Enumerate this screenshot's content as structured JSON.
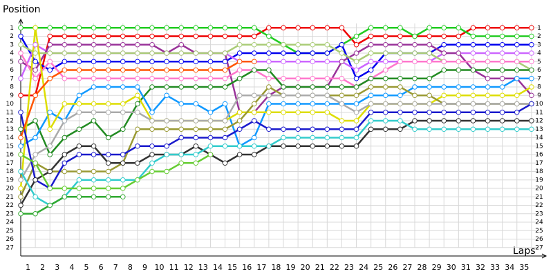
{
  "chart_data": {
    "type": "lap-chart",
    "y_label": "Position",
    "x_label": "Laps",
    "x": [
      0,
      1,
      2,
      3,
      4,
      5,
      6,
      7,
      8,
      9,
      10,
      11,
      12,
      13,
      14,
      15,
      16,
      17,
      18,
      19,
      20,
      21,
      22,
      23,
      24,
      25,
      26,
      27,
      28,
      29,
      30,
      31,
      32,
      33,
      34,
      35
    ],
    "xlim": [
      0,
      36
    ],
    "ylim": [
      28,
      0
    ],
    "xticks": [
      1,
      2,
      3,
      4,
      5,
      6,
      7,
      8,
      9,
      10,
      11,
      12,
      13,
      14,
      15,
      16,
      17,
      18,
      19,
      20,
      21,
      22,
      23,
      24,
      25,
      26,
      27,
      28,
      29,
      30,
      31,
      32,
      33,
      34,
      35
    ],
    "yticks": [
      1,
      2,
      3,
      4,
      5,
      6,
      7,
      8,
      9,
      10,
      11,
      12,
      13,
      14,
      15,
      16,
      17,
      18,
      19,
      20,
      21,
      22,
      23,
      24,
      25,
      26,
      27
    ],
    "grid": true,
    "series": [
      {
        "color": "#ee0000",
        "values": [
          9,
          9,
          2,
          2,
          2,
          2,
          2,
          2,
          2,
          2,
          2,
          2,
          2,
          2,
          2,
          2,
          2,
          1,
          1,
          1,
          1,
          1,
          1,
          3,
          2,
          2,
          2,
          2,
          2,
          2,
          2,
          1,
          1,
          1,
          1,
          1
        ]
      },
      {
        "color": "#22cc22",
        "values": [
          1,
          1,
          1,
          1,
          1,
          1,
          1,
          1,
          1,
          1,
          1,
          1,
          1,
          1,
          1,
          1,
          1,
          2,
          3,
          4,
          4,
          4,
          3,
          2,
          1,
          1,
          1,
          2,
          1,
          1,
          1,
          2,
          2,
          2,
          2,
          2
        ]
      },
      {
        "color": "#0000ee",
        "values": [
          2,
          5,
          6,
          5,
          5,
          5,
          5,
          5,
          5,
          5,
          5,
          5,
          5,
          5,
          5,
          4,
          4,
          4,
          4,
          4,
          4,
          4,
          3,
          7,
          6,
          4,
          4,
          4,
          4,
          3,
          3,
          3,
          3,
          3,
          3,
          3
        ]
      },
      {
        "color": "#cc66ff",
        "values": [
          7,
          3,
          4,
          4,
          4,
          4,
          4,
          4,
          4,
          4,
          4,
          4,
          4,
          4,
          4,
          5,
          5,
          5,
          5,
          5,
          5,
          5,
          5,
          6,
          5,
          5,
          5,
          5,
          5,
          4,
          4,
          4,
          4,
          4,
          4,
          4
        ]
      },
      {
        "color": "#993399",
        "values": [
          5,
          6,
          3,
          3,
          3,
          3,
          3,
          3,
          3,
          3,
          4,
          3,
          4,
          4,
          4,
          11,
          11,
          9,
          8,
          8,
          8,
          8,
          5,
          4,
          3,
          3,
          3,
          3,
          3,
          4,
          4,
          6,
          7,
          7,
          7,
          9
        ]
      },
      {
        "color": "#aacc77",
        "values": [
          3,
          4,
          4,
          4,
          4,
          4,
          4,
          4,
          4,
          4,
          4,
          4,
          4,
          4,
          4,
          3,
          3,
          3,
          3,
          3,
          3,
          3,
          4,
          5,
          4,
          4,
          4,
          4,
          4,
          5,
          5,
          5,
          5,
          5,
          5,
          6
        ]
      },
      {
        "color": "#ff77cc",
        "values": [
          4,
          7,
          5,
          7,
          7,
          7,
          7,
          7,
          7,
          7,
          7,
          7,
          7,
          7,
          7,
          6,
          6,
          7,
          7,
          7,
          7,
          7,
          7,
          8,
          7,
          6,
          5,
          5,
          5,
          5,
          5,
          5,
          5,
          5,
          5,
          5
        ]
      },
      {
        "color": "#228b22",
        "values": [
          13,
          12,
          16,
          14,
          13,
          12,
          14,
          13,
          10,
          8,
          8,
          8,
          8,
          8,
          8,
          7,
          6,
          6,
          8,
          8,
          8,
          8,
          8,
          8,
          7,
          7,
          7,
          7,
          7,
          6,
          6,
          6,
          6,
          6,
          6,
          6
        ]
      },
      {
        "color": "#1199ff",
        "values": [
          15,
          14,
          11,
          12,
          9,
          8,
          8,
          8,
          8,
          11,
          9,
          10,
          10,
          11,
          10,
          15,
          14,
          10,
          10,
          10,
          10,
          10,
          10,
          10,
          9,
          9,
          9,
          8,
          8,
          8,
          8,
          8,
          8,
          8,
          7,
          7
        ]
      },
      {
        "color": "#dddd00",
        "values": [
          20,
          1,
          13,
          10,
          10,
          10,
          10,
          10,
          9,
          12,
          12,
          12,
          12,
          12,
          12,
          11,
          11,
          11,
          11,
          11,
          11,
          11,
          12,
          12,
          10,
          10,
          10,
          10,
          10,
          9,
          9,
          9,
          9,
          9,
          9,
          8
        ]
      },
      {
        "color": "#999933",
        "values": [
          21,
          17,
          18,
          18,
          18,
          18,
          18,
          17,
          13,
          13,
          13,
          13,
          13,
          13,
          13,
          12,
          10,
          8,
          9,
          9,
          9,
          9,
          9,
          9,
          8,
          8,
          8,
          9,
          9,
          10,
          10,
          10,
          10,
          10,
          10,
          10
        ]
      },
      {
        "color": "#aaaaaa",
        "values": [
          19,
          16,
          15,
          12,
          11,
          11,
          11,
          11,
          11,
          12,
          12,
          12,
          12,
          12,
          12,
          9,
          9,
          9,
          9,
          9,
          9,
          9,
          10,
          11,
          10,
          10,
          10,
          10,
          10,
          10,
          10,
          10,
          10,
          10,
          10,
          10
        ]
      },
      {
        "color": "#1a1acc",
        "values": [
          11,
          19,
          20,
          17,
          16,
          16,
          16,
          16,
          15,
          15,
          15,
          14,
          14,
          14,
          14,
          13,
          12,
          13,
          13,
          13,
          13,
          13,
          13,
          13,
          11,
          11,
          11,
          11,
          11,
          11,
          11,
          11,
          11,
          11,
          11,
          10
        ]
      },
      {
        "color": "#333333",
        "values": [
          22,
          19,
          18,
          16,
          15,
          15,
          17,
          17,
          17,
          16,
          16,
          16,
          15,
          16,
          17,
          16,
          16,
          15,
          15,
          15,
          15,
          15,
          15,
          15,
          13,
          13,
          13,
          12,
          12,
          12,
          12,
          12,
          12,
          12,
          12,
          12
        ]
      },
      {
        "color": "#33cccc",
        "values": [
          18,
          21,
          22,
          21,
          19,
          19,
          19,
          19,
          19,
          17,
          16,
          16,
          16,
          15,
          15,
          15,
          15,
          15,
          14,
          14,
          14,
          14,
          14,
          14,
          12,
          12,
          12,
          13,
          13,
          13,
          13,
          13,
          13,
          13,
          13,
          13
        ]
      },
      {
        "color": "#33aa33",
        "values": [
          23,
          23,
          22,
          21,
          21,
          21,
          21,
          21,
          null,
          null,
          null,
          null,
          null,
          null,
          null,
          null,
          null,
          null,
          null,
          null,
          null,
          null,
          null,
          null,
          null,
          null,
          null,
          null,
          null,
          null,
          null,
          null,
          null,
          null,
          null,
          null
        ]
      },
      {
        "color": "#66cc33",
        "values": [
          16,
          17,
          20,
          20,
          20,
          20,
          20,
          20,
          19,
          18,
          18,
          17,
          17,
          16,
          null,
          null,
          null,
          null,
          null,
          null,
          null,
          null,
          null,
          null,
          null,
          null,
          null,
          null,
          null,
          null,
          null,
          null,
          null,
          null,
          null,
          null
        ]
      },
      {
        "color": "#ff5500",
        "values": [
          14,
          9,
          7,
          6,
          6,
          6,
          6,
          6,
          6,
          6,
          6,
          6,
          6,
          6,
          6,
          5,
          5,
          null,
          null,
          null,
          null,
          null,
          null,
          null,
          null,
          null,
          null,
          null,
          null,
          null,
          null,
          null,
          null,
          null,
          null,
          null
        ]
      }
    ]
  }
}
